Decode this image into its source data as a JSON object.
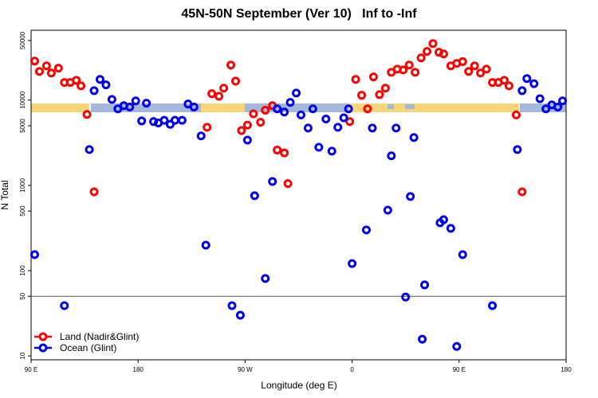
{
  "chart_data": {
    "type": "scatter",
    "title": "45N-50N September (Ver 10)   Inf to -Inf",
    "x_label": "Longitude (deg E)",
    "y_label": "N Total",
    "xlim": [
      90,
      540
    ],
    "xticks": [
      {
        "value": 90,
        "label": "90 E"
      },
      180,
      {
        "value": 270,
        "label": "90 W"
      },
      {
        "value": 360,
        "label": "0"
      },
      {
        "value": 450,
        "label": "90 E"
      },
      {
        "value": 540,
        "label": "180"
      }
    ],
    "ylim": [
      9,
      66000
    ],
    "y_log": true,
    "yticks": [
      10,
      50,
      100,
      500,
      1000,
      5000,
      10000,
      50000
    ],
    "reference_line": 50,
    "legend": "bottom-left",
    "series": [
      {
        "name": "Land (Nadir&Glint)",
        "color": "#ff0000",
        "x": [
          93,
          97,
          103,
          107,
          113,
          118,
          123,
          128,
          132,
          137,
          143,
          238,
          242,
          248,
          252,
          258,
          262,
          267,
          272,
          277,
          283,
          287,
          293,
          297,
          303,
          306,
          358,
          363,
          368,
          373,
          378,
          383,
          388,
          393,
          398,
          403,
          408,
          413,
          418,
          423,
          428,
          433,
          437,
          443,
          448,
          453,
          458,
          463,
          468,
          473,
          478,
          483,
          488,
          492,
          498,
          503
        ],
        "values": [
          28700,
          21700,
          25200,
          20800,
          23700,
          16100,
          16100,
          17100,
          14700,
          6800,
          840,
          4800,
          11900,
          11100,
          13800,
          25800,
          16700,
          4400,
          5100,
          6900,
          5500,
          7600,
          8600,
          2600,
          2400,
          1050,
          5600,
          17500,
          11400,
          7900,
          18700,
          11600,
          13800,
          21200,
          23100,
          22600,
          25800,
          21200,
          31300,
          37200,
          46100,
          36400,
          34800,
          25200,
          27000,
          28300,
          21700,
          25200,
          20800,
          23100,
          16100,
          16100,
          17100,
          14700,
          6700,
          840
        ]
      },
      {
        "name": "Ocean (Glint)",
        "color": "#0000ee",
        "x": [
          93,
          118,
          139,
          143,
          148,
          153,
          158,
          163,
          168,
          173,
          178,
          183,
          187,
          193,
          197,
          202,
          207,
          211,
          217,
          222,
          227,
          233,
          237,
          259,
          266,
          272,
          278,
          287,
          293,
          297,
          303,
          308,
          313,
          317,
          323,
          327,
          332,
          338,
          343,
          348,
          353,
          357,
          360,
          372,
          377,
          390,
          393,
          397,
          405,
          409,
          412,
          419,
          421,
          434,
          437,
          443,
          448,
          453,
          478,
          499,
          503,
          507,
          513,
          518,
          523,
          528,
          533,
          537
        ],
        "values": [
          154,
          38.8,
          2630,
          12900,
          17500,
          15100,
          10200,
          7900,
          8600,
          8300,
          9800,
          5700,
          9200,
          5600,
          5400,
          5800,
          5200,
          5800,
          5800,
          9000,
          8300,
          3800,
          199,
          38.8,
          30,
          3400,
          757,
          80.8,
          1110,
          7900,
          7250,
          9400,
          12100,
          6700,
          4700,
          7900,
          2800,
          6000,
          2520,
          4800,
          6200,
          7900,
          121,
          300,
          4700,
          512,
          2220,
          4700,
          49,
          740,
          3640,
          15.7,
          68,
          364,
          396,
          313,
          12.9,
          154,
          38.8,
          2630,
          12900,
          17900,
          15600,
          10400,
          7900,
          8800,
          8300,
          9800
        ]
      }
    ]
  }
}
